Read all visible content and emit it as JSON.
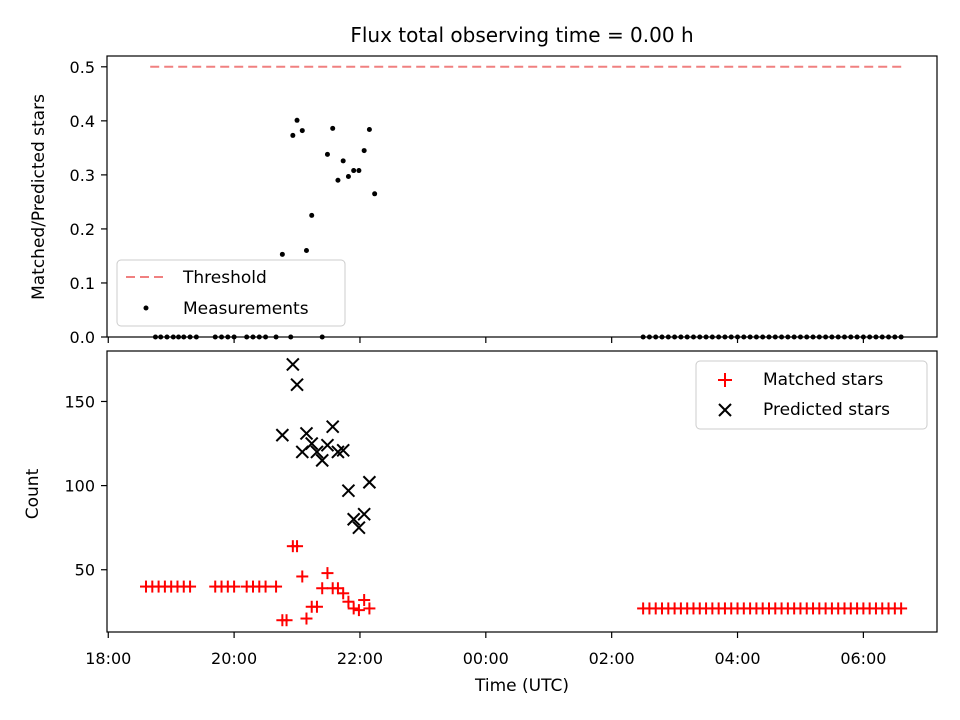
{
  "chart_data": [
    {
      "type": "scatter",
      "title": "Flux total observing time = 0.00 h",
      "xlabel": "",
      "ylabel": "Matched/Predicted stars",
      "ylim": [
        0,
        0.52
      ],
      "yticks": [
        "0.0",
        "0.1",
        "0.2",
        "0.3",
        "0.4",
        "0.5"
      ],
      "threshold": {
        "name": "Threshold",
        "value": 0.5,
        "x_start": "18:40",
        "x_end": "06:40",
        "color": "#f08080"
      },
      "series": [
        {
          "name": "Measurements",
          "color": "#000000",
          "points": [
            [
              "18:45",
              0
            ],
            [
              "18:50",
              0
            ],
            [
              "18:56",
              0
            ],
            [
              "19:02",
              0
            ],
            [
              "19:07",
              0
            ],
            [
              "19:12",
              0
            ],
            [
              "19:18",
              0
            ],
            [
              "19:24",
              0
            ],
            [
              "19:42",
              0
            ],
            [
              "19:48",
              0
            ],
            [
              "19:54",
              0
            ],
            [
              "20:00",
              0
            ],
            [
              "20:12",
              0
            ],
            [
              "20:18",
              0
            ],
            [
              "20:24",
              0
            ],
            [
              "20:30",
              0
            ],
            [
              "20:40",
              0
            ],
            [
              "20:54",
              0
            ],
            [
              "20:46",
              0.153
            ],
            [
              "20:56",
              0.373
            ],
            [
              "21:00",
              0.401
            ],
            [
              "21:05",
              0.382
            ],
            [
              "21:09",
              0.16
            ],
            [
              "21:14",
              0.225
            ],
            [
              "21:24",
              0
            ],
            [
              "21:29",
              0.338
            ],
            [
              "21:34",
              0.386
            ],
            [
              "21:39",
              0.29
            ],
            [
              "21:44",
              0.326
            ],
            [
              "21:49",
              0.297
            ],
            [
              "21:54",
              0.308
            ],
            [
              "21:59",
              0.308
            ],
            [
              "22:04",
              0.345
            ],
            [
              "22:09",
              0.384
            ],
            [
              "22:14",
              0.265
            ],
            [
              "02:30",
              0
            ],
            [
              "02:36",
              0
            ],
            [
              "02:42",
              0
            ],
            [
              "02:48",
              0
            ],
            [
              "02:54",
              0
            ],
            [
              "03:00",
              0
            ],
            [
              "03:06",
              0
            ],
            [
              "03:12",
              0
            ],
            [
              "03:18",
              0
            ],
            [
              "03:24",
              0
            ],
            [
              "03:30",
              0
            ],
            [
              "03:36",
              0
            ],
            [
              "03:42",
              0
            ],
            [
              "03:48",
              0
            ],
            [
              "03:54",
              0
            ],
            [
              "04:00",
              0
            ],
            [
              "04:06",
              0
            ],
            [
              "04:12",
              0
            ],
            [
              "04:18",
              0
            ],
            [
              "04:24",
              0
            ],
            [
              "04:30",
              0
            ],
            [
              "04:36",
              0
            ],
            [
              "04:42",
              0
            ],
            [
              "04:48",
              0
            ],
            [
              "04:54",
              0
            ],
            [
              "05:00",
              0
            ],
            [
              "05:06",
              0
            ],
            [
              "05:12",
              0
            ],
            [
              "05:18",
              0
            ],
            [
              "05:24",
              0
            ],
            [
              "05:30",
              0
            ],
            [
              "05:36",
              0
            ],
            [
              "05:42",
              0
            ],
            [
              "05:48",
              0
            ],
            [
              "05:54",
              0
            ],
            [
              "06:00",
              0
            ],
            [
              "06:06",
              0
            ],
            [
              "06:12",
              0
            ],
            [
              "06:18",
              0
            ],
            [
              "06:24",
              0
            ],
            [
              "06:30",
              0
            ],
            [
              "06:36",
              0
            ]
          ]
        }
      ],
      "legend": {
        "placement": "lower-left",
        "entries": [
          "Threshold",
          "Measurements"
        ]
      }
    },
    {
      "type": "scatter",
      "title": "",
      "xlabel": "Time (UTC)",
      "ylabel": "Count",
      "ylim": [
        13,
        180
      ],
      "yticks": [
        "50",
        "100",
        "150"
      ],
      "xticks": [
        "18:00",
        "20:00",
        "22:00",
        "00:00",
        "02:00",
        "04:00",
        "06:00"
      ],
      "series": [
        {
          "name": "Matched stars",
          "color": "#ff0000",
          "marker": "plus",
          "points": [
            [
              "18:36",
              40
            ],
            [
              "18:42",
              40
            ],
            [
              "18:48",
              40
            ],
            [
              "18:54",
              40
            ],
            [
              "19:00",
              40
            ],
            [
              "19:06",
              40
            ],
            [
              "19:12",
              40
            ],
            [
              "19:18",
              40
            ],
            [
              "19:42",
              40
            ],
            [
              "19:48",
              40
            ],
            [
              "19:54",
              40
            ],
            [
              "20:00",
              40
            ],
            [
              "20:12",
              40
            ],
            [
              "20:18",
              40
            ],
            [
              "20:24",
              40
            ],
            [
              "20:30",
              40
            ],
            [
              "20:40",
              40
            ],
            [
              "20:46",
              20
            ],
            [
              "20:50",
              20
            ],
            [
              "20:56",
              64
            ],
            [
              "21:00",
              64
            ],
            [
              "21:05",
              46
            ],
            [
              "21:09",
              21
            ],
            [
              "21:14",
              28
            ],
            [
              "21:19",
              28
            ],
            [
              "21:24",
              39
            ],
            [
              "21:29",
              48
            ],
            [
              "21:34",
              39
            ],
            [
              "21:39",
              39
            ],
            [
              "21:44",
              36
            ],
            [
              "21:49",
              31
            ],
            [
              "21:54",
              27
            ],
            [
              "21:59",
              26
            ],
            [
              "22:04",
              32
            ],
            [
              "22:09",
              27
            ],
            [
              "02:30",
              27
            ],
            [
              "02:36",
              27
            ],
            [
              "02:42",
              27
            ],
            [
              "02:48",
              27
            ],
            [
              "02:54",
              27
            ],
            [
              "03:00",
              27
            ],
            [
              "03:06",
              27
            ],
            [
              "03:12",
              27
            ],
            [
              "03:18",
              27
            ],
            [
              "03:24",
              27
            ],
            [
              "03:30",
              27
            ],
            [
              "03:36",
              27
            ],
            [
              "03:42",
              27
            ],
            [
              "03:48",
              27
            ],
            [
              "03:54",
              27
            ],
            [
              "04:00",
              27
            ],
            [
              "04:06",
              27
            ],
            [
              "04:12",
              27
            ],
            [
              "04:18",
              27
            ],
            [
              "04:24",
              27
            ],
            [
              "04:30",
              27
            ],
            [
              "04:36",
              27
            ],
            [
              "04:42",
              27
            ],
            [
              "04:48",
              27
            ],
            [
              "04:54",
              27
            ],
            [
              "05:00",
              27
            ],
            [
              "05:06",
              27
            ],
            [
              "05:12",
              27
            ],
            [
              "05:18",
              27
            ],
            [
              "05:24",
              27
            ],
            [
              "05:30",
              27
            ],
            [
              "05:36",
              27
            ],
            [
              "05:42",
              27
            ],
            [
              "05:48",
              27
            ],
            [
              "05:54",
              27
            ],
            [
              "06:00",
              27
            ],
            [
              "06:06",
              27
            ],
            [
              "06:12",
              27
            ],
            [
              "06:18",
              27
            ],
            [
              "06:24",
              27
            ],
            [
              "06:30",
              27
            ],
            [
              "06:36",
              27
            ]
          ]
        },
        {
          "name": "Predicted stars",
          "color": "#000000",
          "marker": "x",
          "points": [
            [
              "20:46",
              130
            ],
            [
              "20:56",
              172
            ],
            [
              "21:00",
              160
            ],
            [
              "21:05",
              120
            ],
            [
              "21:09",
              131
            ],
            [
              "21:14",
              125
            ],
            [
              "21:19",
              120
            ],
            [
              "21:24",
              115
            ],
            [
              "21:29",
              124
            ],
            [
              "21:34",
              135
            ],
            [
              "21:39",
              120
            ],
            [
              "21:44",
              121
            ],
            [
              "21:49",
              97
            ],
            [
              "21:54",
              80
            ],
            [
              "21:59",
              75
            ],
            [
              "22:04",
              83
            ],
            [
              "22:09",
              102
            ]
          ]
        }
      ],
      "legend": {
        "placement": "top-right",
        "entries": [
          "Matched stars",
          "Predicted stars"
        ]
      }
    }
  ]
}
